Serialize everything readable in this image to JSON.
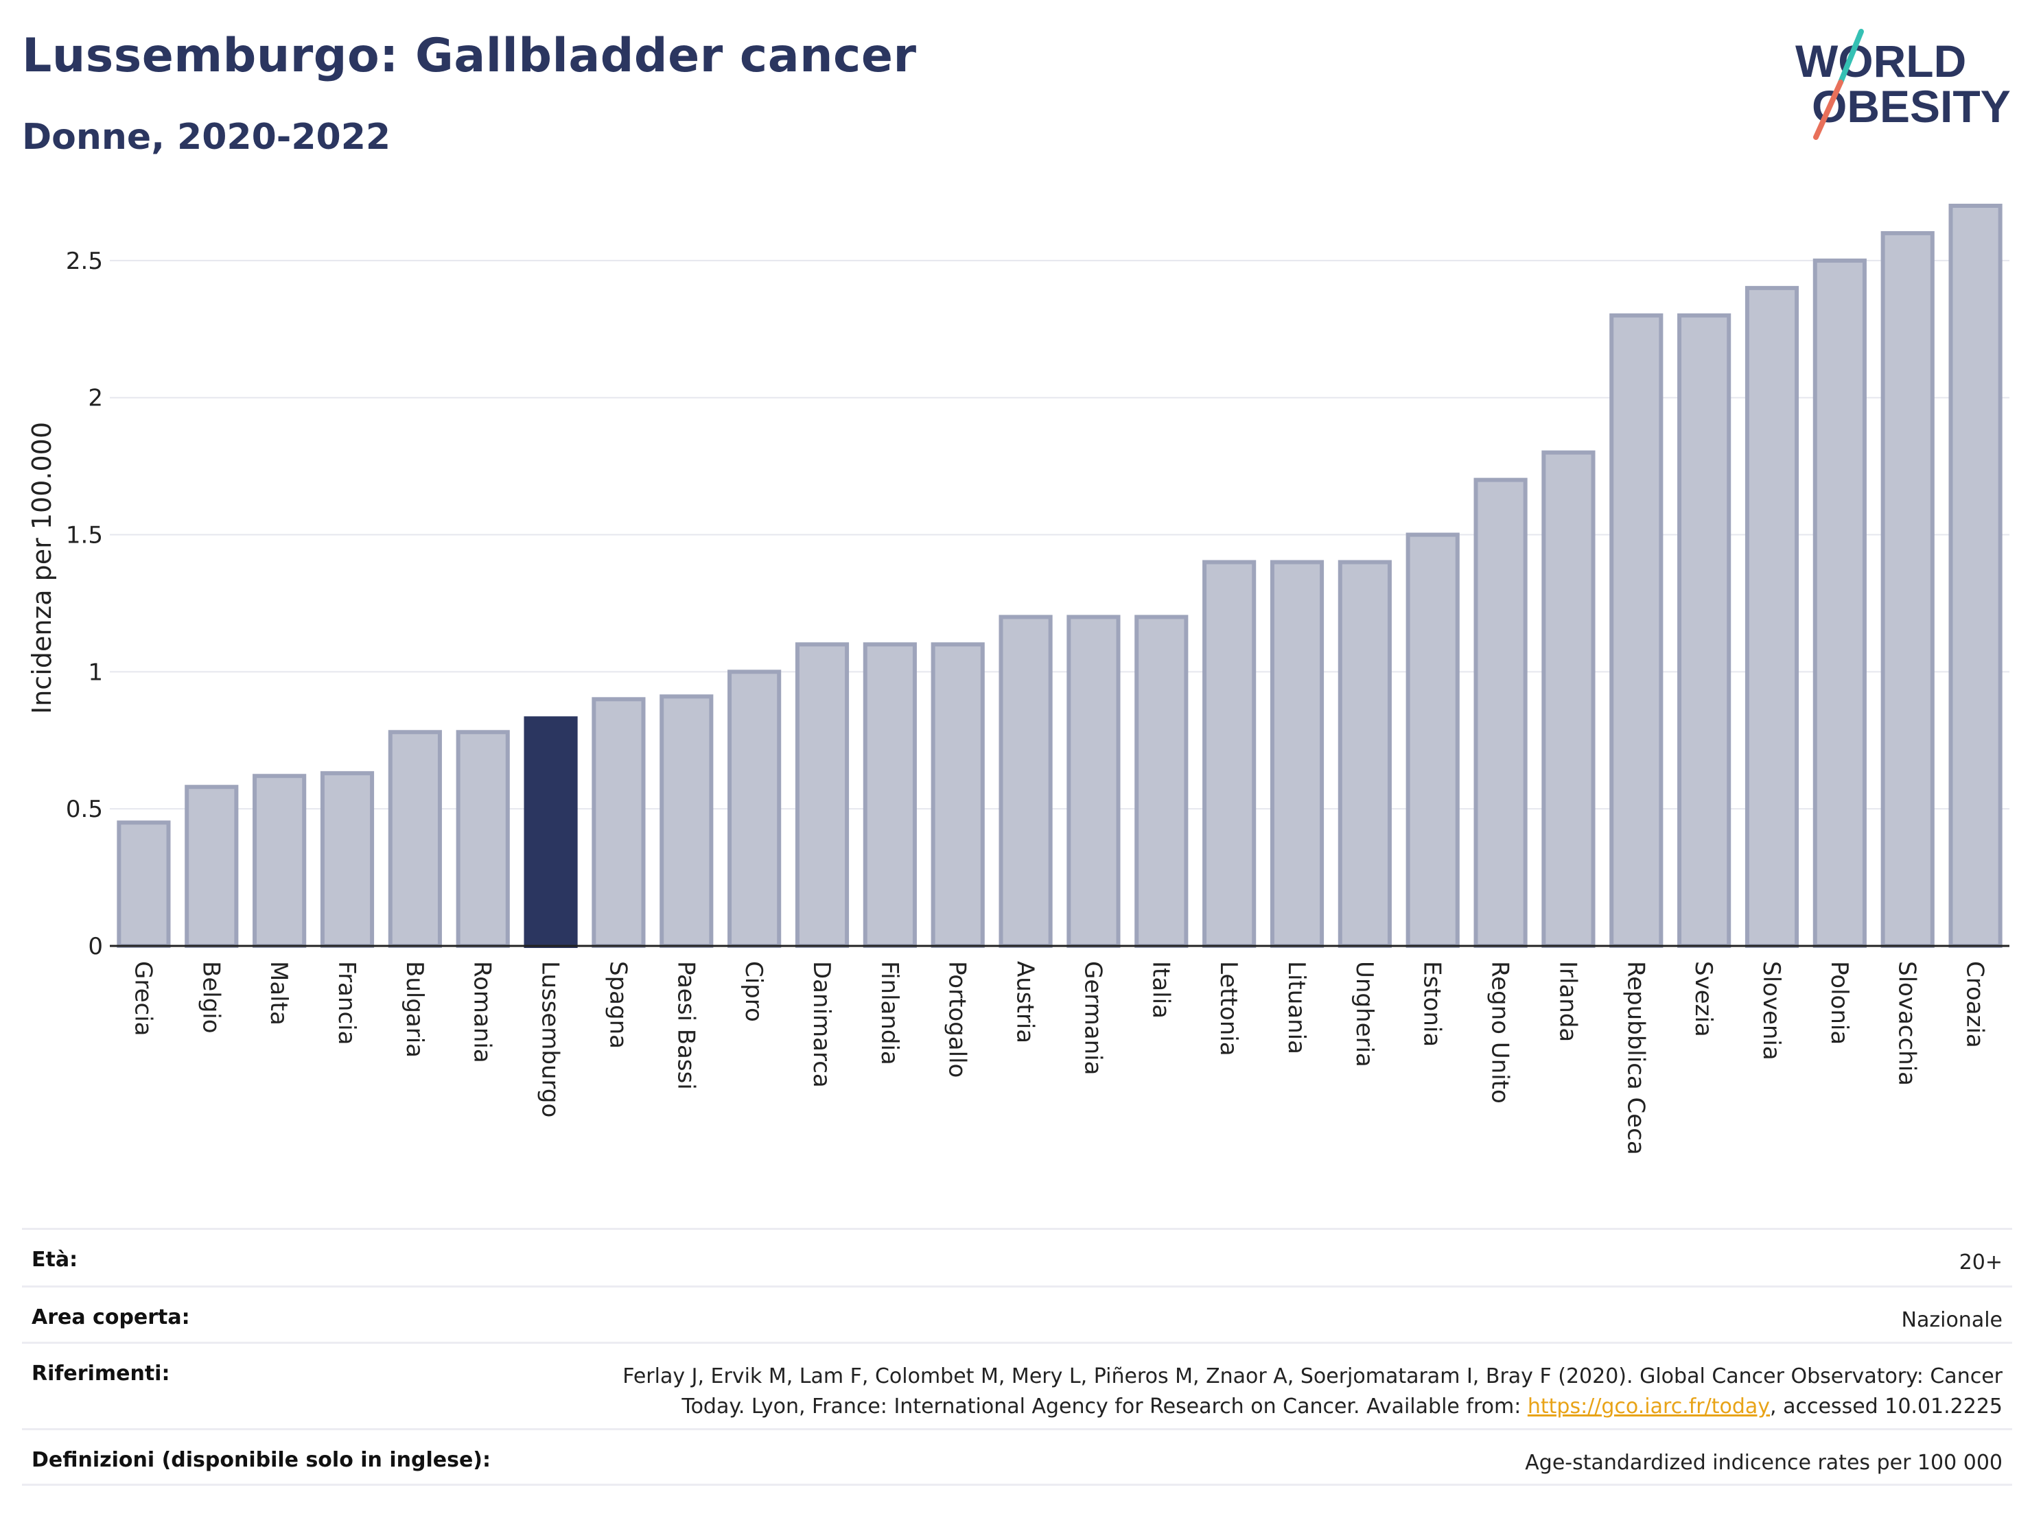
{
  "header": {
    "title": "Lussemburgo: Gallbladder cancer",
    "subtitle": "Donne, 2020-2022"
  },
  "logo": {
    "line1": "WORLD",
    "line2": "OBESITY",
    "colors": {
      "text": "#2b3660",
      "slash_top": "#35c0b4",
      "slash_bottom": "#e8705a"
    }
  },
  "colors": {
    "bar_default": "#bfc3d1",
    "bar_border": "#9ea4bb",
    "bar_highlight": "#2b3660",
    "grid": "#e6e7ee",
    "axis": "#222222"
  },
  "chart_data": {
    "type": "bar",
    "title": "Lussemburgo: Gallbladder cancer",
    "ylabel": "Incidenza per 100.000",
    "xlabel": "",
    "ylim": [
      0,
      2.75
    ],
    "yticks": [
      0,
      0.5,
      1,
      1.5,
      2,
      2.5
    ],
    "ytick_labels": [
      "0",
      "0.5",
      "1",
      "1.5",
      "2",
      "2.5"
    ],
    "grid": true,
    "highlight": "Lussemburgo",
    "categories": [
      "Grecia",
      "Belgio",
      "Malta",
      "Francia",
      "Bulgaria",
      "Romania",
      "Lussemburgo",
      "Spagna",
      "Paesi Bassi",
      "Cipro",
      "Danimarca",
      "Finlandia",
      "Portogallo",
      "Austria",
      "Germania",
      "Italia",
      "Lettonia",
      "Lituania",
      "Ungheria",
      "Estonia",
      "Regno Unito",
      "Irlanda",
      "Repubblica Ceca",
      "Svezia",
      "Slovenia",
      "Polonia",
      "Slovacchia",
      "Croazia"
    ],
    "values": [
      0.45,
      0.58,
      0.62,
      0.63,
      0.78,
      0.78,
      0.83,
      0.9,
      0.91,
      1.0,
      1.1,
      1.1,
      1.1,
      1.2,
      1.2,
      1.2,
      1.4,
      1.4,
      1.4,
      1.5,
      1.7,
      1.8,
      2.3,
      2.3,
      2.4,
      2.5,
      2.6,
      2.7
    ]
  },
  "info": {
    "age": {
      "label": "Età:",
      "value": "20+"
    },
    "area": {
      "label": "Area coperta:",
      "value": "Nazionale"
    },
    "refs": {
      "label": "Riferimenti:",
      "line1": "Ferlay J, Ervik M, Lam F, Colombet M, Mery L, Piñeros M, Znaor A, Soerjomataram I, Bray F (2020). Global Cancer Observatory: Cancer",
      "line2_pre": "Today. Lyon, France: International Agency for Research on Cancer. Available from: ",
      "link": "https://gco.iarc.fr/today",
      "line2_post": ", accessed 10.01.2225"
    },
    "defs": {
      "label": "Definizioni (disponibile solo in inglese):",
      "value": "Age-standardized indicence rates per 100 000"
    }
  }
}
